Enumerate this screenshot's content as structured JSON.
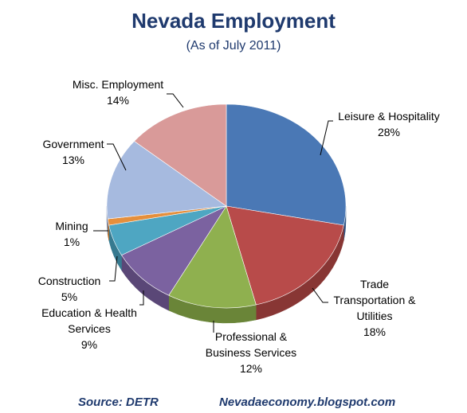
{
  "chart_data": {
    "type": "pie",
    "title": "Nevada Employment",
    "subtitle": "(As of July 2011)",
    "slices": [
      {
        "name": "Leisure & Hospitality",
        "label_lines": [
          "Leisure & Hospitality"
        ],
        "value": 28,
        "value_label": "28%",
        "color": "#4a78b5",
        "side": "#2f5585"
      },
      {
        "name": "Trade Transportation & Utilities",
        "label_lines": [
          "Trade",
          "Transportation &",
          "Utilities"
        ],
        "value": 18,
        "value_label": "18%",
        "color": "#b84b4a",
        "side": "#883634"
      },
      {
        "name": "Professional & Business Services",
        "label_lines": [
          "Professional &",
          "Business Services"
        ],
        "value": 12,
        "value_label": "12%",
        "color": "#8fb04f",
        "side": "#6a8538"
      },
      {
        "name": "Education & Health Services",
        "label_lines": [
          "Education & Health",
          "Services"
        ],
        "value": 9,
        "value_label": "9%",
        "color": "#7b62a0",
        "side": "#5a4777"
      },
      {
        "name": "Construction",
        "label_lines": [
          "Construction"
        ],
        "value": 5,
        "value_label": "5%",
        "color": "#4ea6c2",
        "side": "#367a90"
      },
      {
        "name": "Mining",
        "label_lines": [
          "Mining"
        ],
        "value": 1,
        "value_label": "1%",
        "color": "#e58f3c",
        "side": "#b06a26"
      },
      {
        "name": "Government",
        "label_lines": [
          "Government"
        ],
        "value": 13,
        "value_label": "13%",
        "color": "#a6badf",
        "side": "#7d8fb0"
      },
      {
        "name": "Misc. Employment",
        "label_lines": [
          "Misc. Employment"
        ],
        "value": 14,
        "value_label": "14%",
        "color": "#d99a99",
        "side": "#a87473"
      }
    ]
  },
  "footer": {
    "source": "Source: DETR",
    "site": "Nevadaeconomy.blogspot.com"
  }
}
